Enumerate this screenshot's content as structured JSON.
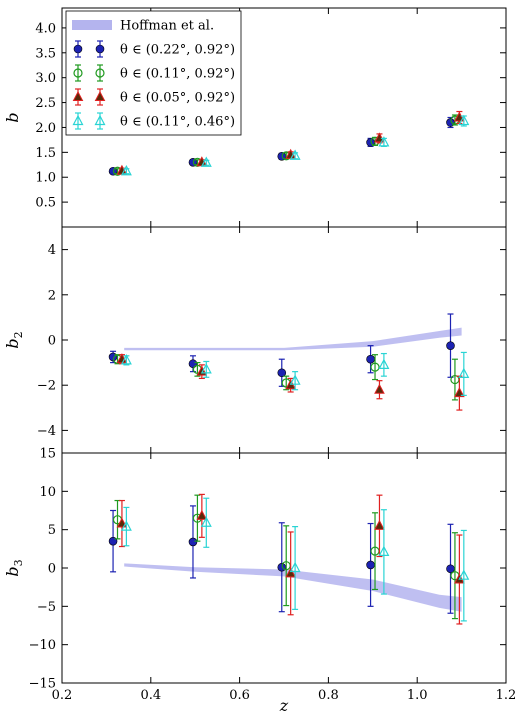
{
  "chart_data": {
    "type": "scatter",
    "xlabel": "z",
    "xlim": [
      0.2,
      1.2
    ],
    "xticks": [
      "0.2",
      "0.4",
      "0.6",
      "0.8",
      "1.0",
      "1.2"
    ],
    "legend": {
      "placement": "top-left",
      "entries": [
        {
          "label": "Hoffman et al.",
          "kind": "band",
          "color": "#b4b4ee"
        },
        {
          "label": "θ ∈ (0.22°, 0.92°)",
          "kind": "marker",
          "marker": "filled-circle",
          "color": "#1c22b2"
        },
        {
          "label": "θ ∈ (0.11°, 0.92°)",
          "kind": "marker",
          "marker": "open-circle",
          "color": "#1f9a1f"
        },
        {
          "label": "θ ∈ (0.05°, 0.92°)",
          "kind": "marker",
          "marker": "filled-triangle",
          "color": "#e02020"
        },
        {
          "label": "θ ∈ (0.11°, 0.46°)",
          "kind": "marker",
          "marker": "open-triangle",
          "color": "#2ad4d4"
        }
      ]
    },
    "panels": [
      {
        "ylabel": "b",
        "ylabel_sub": "",
        "ylim": [
          0,
          4.4
        ],
        "yticks": [
          "0.5",
          "1.0",
          "1.5",
          "2.0",
          "2.5",
          "3.0",
          "3.5",
          "4.0"
        ],
        "ytick_values": [
          0.5,
          1.0,
          1.5,
          2.0,
          2.5,
          3.0,
          3.5,
          4.0
        ],
        "series": [
          {
            "name": "θ ∈ (0.22°, 0.92°)",
            "x": [
              0.315,
              0.495,
              0.695,
              0.895,
              1.075
            ],
            "y": [
              1.12,
              1.3,
              1.42,
              1.7,
              2.1
            ],
            "err": [
              0.05,
              0.05,
              0.06,
              0.08,
              0.1
            ]
          },
          {
            "name": "θ ∈ (0.11°, 0.92°)",
            "x": [
              0.325,
              0.505,
              0.705,
              0.905,
              1.085
            ],
            "y": [
              1.12,
              1.3,
              1.43,
              1.72,
              2.15
            ],
            "err": [
              0.05,
              0.05,
              0.06,
              0.08,
              0.1
            ]
          },
          {
            "name": "θ ∈ (0.05°, 0.92°)",
            "x": [
              0.335,
              0.515,
              0.715,
              0.915,
              1.095
            ],
            "y": [
              1.13,
              1.3,
              1.45,
              1.78,
              2.2
            ],
            "err": [
              0.05,
              0.05,
              0.06,
              0.09,
              0.12
            ]
          },
          {
            "name": "θ ∈ (0.11°, 0.46°)",
            "x": [
              0.345,
              0.525,
              0.725,
              0.925,
              1.105
            ],
            "y": [
              1.12,
              1.29,
              1.43,
              1.7,
              2.13
            ],
            "err": [
              0.05,
              0.05,
              0.06,
              0.08,
              0.1
            ]
          }
        ],
        "band": null
      },
      {
        "ylabel": "b",
        "ylabel_sub": "2",
        "ylim": [
          -5,
          5
        ],
        "yticks": [
          "−4",
          "−2",
          "0",
          "2",
          "4"
        ],
        "ytick_values": [
          -4,
          -2,
          0,
          2,
          4
        ],
        "series": [
          {
            "name": "θ ∈ (0.22°, 0.92°)",
            "x": [
              0.315,
              0.495,
              0.695,
              0.895,
              1.075
            ],
            "y": [
              -0.75,
              -1.05,
              -1.45,
              -0.85,
              -0.25
            ],
            "err": [
              0.25,
              0.35,
              0.6,
              0.6,
              1.4
            ]
          },
          {
            "name": "θ ∈ (0.11°, 0.92°)",
            "x": [
              0.325,
              0.505,
              0.705,
              0.905,
              1.085
            ],
            "y": [
              -0.85,
              -1.3,
              -1.9,
              -1.2,
              -1.75
            ],
            "err": [
              0.2,
              0.3,
              0.3,
              0.55,
              0.9
            ]
          },
          {
            "name": "θ ∈ (0.05°, 0.92°)",
            "x": [
              0.335,
              0.515,
              0.715,
              0.915,
              1.095
            ],
            "y": [
              -0.85,
              -1.4,
              -2.0,
              -2.2,
              -2.35
            ],
            "err": [
              0.2,
              0.3,
              0.3,
              0.4,
              0.75
            ]
          },
          {
            "name": "θ ∈ (0.11°, 0.46°)",
            "x": [
              0.345,
              0.525,
              0.725,
              0.925,
              1.105
            ],
            "y": [
              -0.9,
              -1.3,
              -1.8,
              -1.1,
              -1.5
            ],
            "err": [
              0.2,
              0.35,
              0.4,
              0.5,
              0.95
            ]
          }
        ],
        "band": {
          "x": [
            0.34,
            0.5,
            0.7,
            0.9,
            1.05,
            1.1
          ],
          "lo": [
            -0.45,
            -0.45,
            -0.45,
            -0.3,
            0.1,
            0.2
          ],
          "hi": [
            -0.35,
            -0.35,
            -0.35,
            -0.05,
            0.4,
            0.55
          ]
        }
      },
      {
        "ylabel": "b",
        "ylabel_sub": "3",
        "ylim": [
          -15,
          15
        ],
        "yticks": [
          "−15",
          "−10",
          "−5",
          "0",
          "5",
          "10",
          "15"
        ],
        "ytick_values": [
          -15,
          -10,
          -5,
          0,
          5,
          10,
          15
        ],
        "series": [
          {
            "name": "θ ∈ (0.22°, 0.92°)",
            "x": [
              0.315,
              0.495,
              0.695,
              0.895,
              1.075
            ],
            "y": [
              3.5,
              3.4,
              0.1,
              0.4,
              -0.1
            ],
            "err": [
              4.0,
              4.7,
              5.8,
              5.4,
              5.8
            ]
          },
          {
            "name": "θ ∈ (0.11°, 0.92°)",
            "x": [
              0.325,
              0.505,
              0.705,
              0.905,
              1.085
            ],
            "y": [
              6.3,
              6.5,
              0.3,
              2.2,
              -1.0
            ],
            "err": [
              2.5,
              3.0,
              5.2,
              5.0,
              5.6
            ]
          },
          {
            "name": "θ ∈ (0.05°, 0.92°)",
            "x": [
              0.335,
              0.515,
              0.715,
              0.915,
              1.095
            ],
            "y": [
              5.8,
              6.8,
              -0.7,
              5.5,
              -1.5
            ],
            "err": [
              3.0,
              2.8,
              5.4,
              4.0,
              5.8
            ]
          },
          {
            "name": "θ ∈ (0.11°, 0.46°)",
            "x": [
              0.345,
              0.525,
              0.725,
              0.925,
              1.105
            ],
            "y": [
              5.4,
              5.9,
              0.0,
              2.1,
              -1.0
            ],
            "err": [
              2.5,
              3.2,
              5.4,
              5.5,
              5.9
            ]
          }
        ],
        "band": {
          "x": [
            0.34,
            0.5,
            0.7,
            0.9,
            1.05,
            1.1
          ],
          "lo": [
            0.2,
            -0.5,
            -1.1,
            -3.0,
            -5.2,
            -5.7
          ],
          "hi": [
            0.6,
            0.1,
            -0.2,
            -1.5,
            -3.5,
            -3.8
          ]
        }
      }
    ]
  }
}
